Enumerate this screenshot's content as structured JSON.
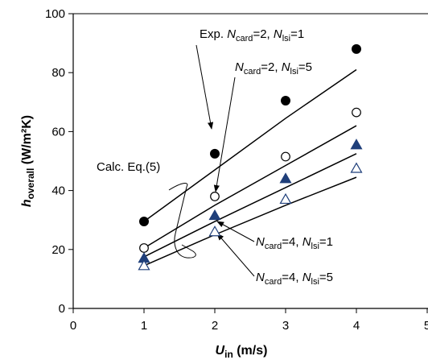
{
  "chart_data": {
    "type": "scatter",
    "xlabel": {
      "main": "U",
      "sub": "in",
      "rest": " (m/s)"
    },
    "ylabel": {
      "main": "h",
      "sub": "overall",
      "rest": " (W/m²K)"
    },
    "xlim": [
      0,
      5
    ],
    "ylim": [
      0,
      100
    ],
    "xticks": [
      0,
      1,
      2,
      3,
      4,
      5
    ],
    "yticks": [
      0,
      20,
      40,
      60,
      80,
      100
    ],
    "grid": false,
    "series": [
      {
        "marker": "filled-circle",
        "color": "#000000",
        "x": [
          1,
          2,
          3,
          4
        ],
        "y": [
          29.5,
          52.5,
          70.5,
          88.0
        ],
        "fit": [
          [
            1,
            29.5
          ],
          [
            2,
            47.0
          ],
          [
            3,
            64.5
          ],
          [
            4,
            81.0
          ]
        ]
      },
      {
        "marker": "open-circle",
        "color": "#000000",
        "x": [
          1,
          2,
          3,
          4
        ],
        "y": [
          20.5,
          38.0,
          51.5,
          66.5
        ],
        "fit": [
          [
            1,
            20.5
          ],
          [
            2,
            35.0
          ],
          [
            3,
            48.5
          ],
          [
            4,
            62.0
          ]
        ]
      },
      {
        "marker": "filled-triangle",
        "color": "#1f3f7a",
        "x": [
          1,
          2,
          3,
          4
        ],
        "y": [
          17.0,
          31.5,
          44.0,
          55.5
        ],
        "fit": [
          [
            1,
            17.5
          ],
          [
            2,
            29.5
          ],
          [
            3,
            41.0
          ],
          [
            4,
            52.5
          ]
        ]
      },
      {
        "marker": "open-triangle",
        "color": "#1f3f7a",
        "x": [
          1,
          2,
          3,
          4
        ],
        "y": [
          14.5,
          26.0,
          37.0,
          47.5
        ],
        "fit": [
          [
            1,
            14.5
          ],
          [
            2,
            25.0
          ],
          [
            3,
            35.0
          ],
          [
            4,
            44.5
          ]
        ]
      }
    ],
    "annotations": [
      {
        "parts": [
          {
            "t": "Exp. ",
            "style": "normal"
          },
          {
            "t": "N",
            "style": "italic"
          },
          {
            "t": "card",
            "style": "sub"
          },
          {
            "t": "=2, ",
            "style": "normal"
          },
          {
            "t": "N",
            "style": "italic"
          },
          {
            "t": "lsi",
            "style": "sub"
          },
          {
            "t": "=1",
            "style": "normal"
          }
        ]
      },
      {
        "parts": [
          {
            "t": "N",
            "style": "italic"
          },
          {
            "t": "card",
            "style": "sub"
          },
          {
            "t": "=2, ",
            "style": "normal"
          },
          {
            "t": "N",
            "style": "italic"
          },
          {
            "t": "lsi",
            "style": "sub"
          },
          {
            "t": "=5",
            "style": "normal"
          }
        ]
      },
      {
        "parts": [
          {
            "t": "Calc. Eq.(5)",
            "style": "normal"
          }
        ]
      },
      {
        "parts": [
          {
            "t": "N",
            "style": "italic"
          },
          {
            "t": "card",
            "style": "sub"
          },
          {
            "t": "=4, ",
            "style": "normal"
          },
          {
            "t": "N",
            "style": "italic"
          },
          {
            "t": "lsi",
            "style": "sub"
          },
          {
            "t": "=1",
            "style": "normal"
          }
        ]
      },
      {
        "parts": [
          {
            "t": "N",
            "style": "italic"
          },
          {
            "t": "card",
            "style": "sub"
          },
          {
            "t": "=4, ",
            "style": "normal"
          },
          {
            "t": "N",
            "style": "italic"
          },
          {
            "t": "lsi",
            "style": "sub"
          },
          {
            "t": "=5",
            "style": "normal"
          }
        ]
      }
    ]
  }
}
